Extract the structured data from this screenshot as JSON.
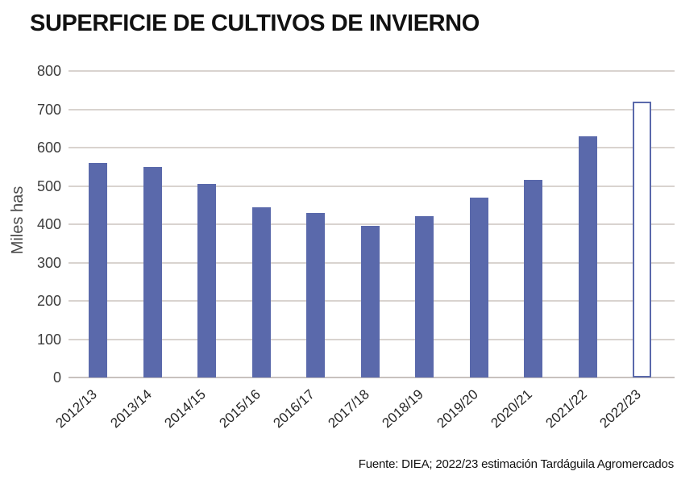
{
  "chart_data": {
    "type": "bar",
    "title": "SUPERFICIE DE CULTIVOS DE INVIERNO",
    "ylabel": "Miles has",
    "xlabel": "",
    "categories": [
      "2012/13",
      "2013/14",
      "2014/15",
      "2015/16",
      "2016/17",
      "2017/18",
      "2018/19",
      "2019/20",
      "2020/21",
      "2021/22",
      "2022/23"
    ],
    "values": [
      560,
      550,
      505,
      445,
      430,
      395,
      420,
      470,
      515,
      630,
      720
    ],
    "ylim": [
      0,
      800
    ],
    "yticks": [
      0,
      100,
      200,
      300,
      400,
      500,
      600,
      700,
      800
    ],
    "grid": true,
    "legend": "none",
    "bar_color": "#5a69ab",
    "estimate_bar": {
      "category": "2022/23",
      "fill": "#ffffff",
      "border_color": "#5a69ab"
    },
    "source_note": "Fuente: DIEA; 2022/23 estimación Tardáguila Agromercados"
  }
}
